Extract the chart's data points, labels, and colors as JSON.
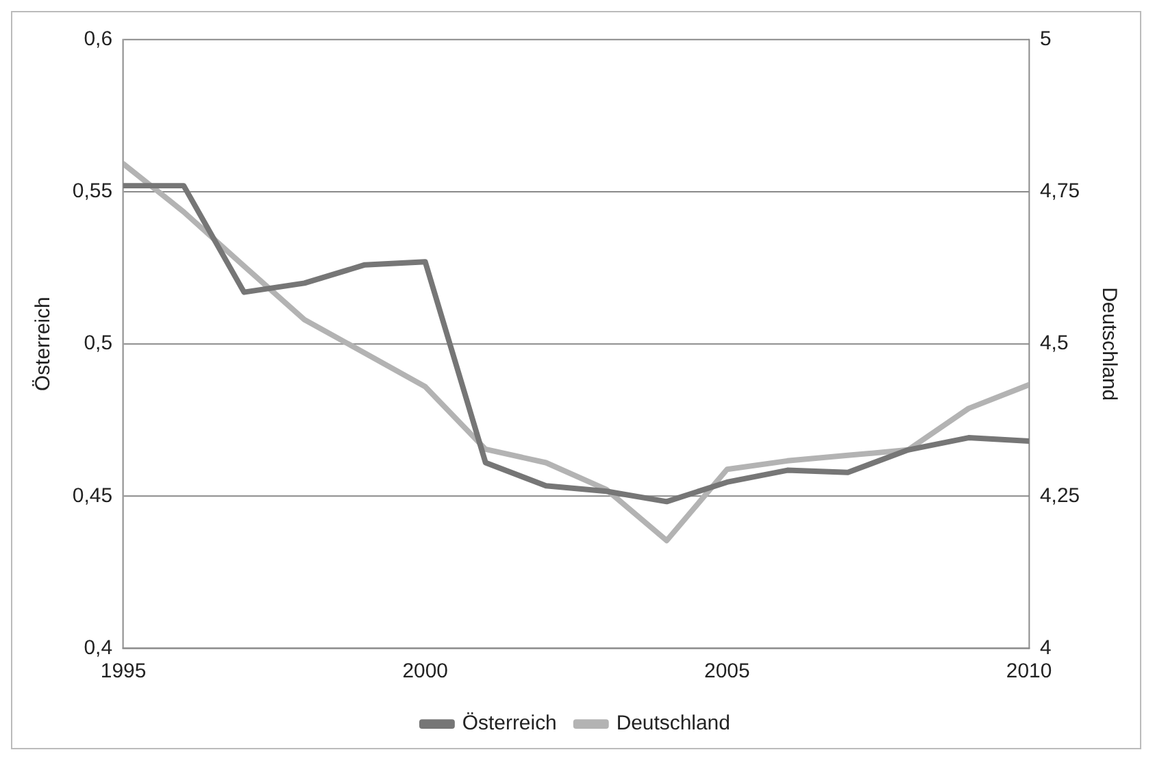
{
  "chart_data": {
    "type": "line",
    "ylabel": "Österreich",
    "y2label": "Deutschland",
    "x": [
      1995,
      1996,
      1997,
      1998,
      1999,
      2000,
      2001,
      2002,
      2003,
      2004,
      2005,
      2006,
      2007,
      2008,
      2009,
      2010
    ],
    "xlim": [
      1995,
      2010
    ],
    "xticks": [
      1995,
      2000,
      2005,
      2010
    ],
    "ylim": [
      0.4,
      0.6
    ],
    "yticks": [
      {
        "value": 0.4,
        "label": "0,4"
      },
      {
        "value": 0.45,
        "label": "0,45"
      },
      {
        "value": 0.5,
        "label": "0,5"
      },
      {
        "value": 0.55,
        "label": "0,55"
      },
      {
        "value": 0.6,
        "label": "0,6"
      }
    ],
    "y2lim": [
      4,
      5
    ],
    "y2ticks": [
      4,
      {
        "value": 4.25,
        "label": "4,25"
      },
      {
        "value": 4.5,
        "label": "4,5"
      },
      {
        "value": 4.75,
        "label": "4,75"
      },
      5
    ],
    "grid": "y",
    "legend": "bottom",
    "marker": "none",
    "line_style": "solid",
    "series": [
      {
        "name": "Österreich",
        "color": "#767676",
        "values": [
          0.552,
          0.552,
          0.517,
          0.52,
          0.526,
          0.527,
          0.461,
          0.4534,
          0.4516,
          0.4482,
          0.4546,
          0.4585,
          0.4578,
          0.4652,
          0.4692,
          0.4681
        ]
      },
      {
        "name": "Deutschland",
        "color": "#b3b3b3",
        "axis": "y2",
        "values": [
          4.796,
          4.717,
          4.628,
          4.54,
          4.485,
          4.43,
          4.327,
          4.305,
          4.261,
          4.177,
          4.294,
          4.308,
          4.317,
          4.326,
          4.394,
          4.433
        ]
      }
    ]
  }
}
